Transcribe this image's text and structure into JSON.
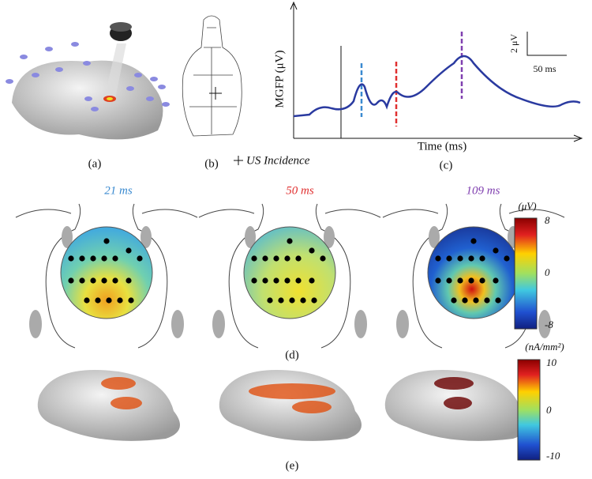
{
  "panels": {
    "a": {
      "label": "(a)"
    },
    "b": {
      "label": "(b)",
      "legend": "US Incidence"
    },
    "c": {
      "label": "(c)",
      "y_axis_label": "MGFP (μV)",
      "x_axis_label": "Time (ms)",
      "scale_bar": {
        "vertical": "2 μV",
        "horizontal": "50 ms"
      }
    },
    "d": {
      "label": "(d)",
      "maps": [
        {
          "title": "21 ms"
        },
        {
          "title": "50 ms"
        },
        {
          "title": "109 ms"
        }
      ],
      "colorbar": {
        "unit": "(μV)",
        "ticks": [
          8,
          0,
          -8
        ]
      }
    },
    "e": {
      "label": "(e)",
      "colorbar": {
        "unit": "(nA/mm²)",
        "ticks": [
          10,
          0,
          -10
        ]
      }
    }
  }
}
